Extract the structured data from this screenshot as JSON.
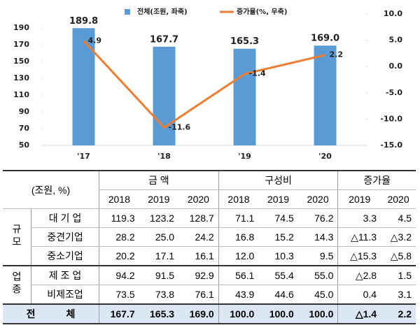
{
  "chart_data": {
    "type": "combo",
    "categories": [
      "'17",
      "'18",
      "'19",
      "'20"
    ],
    "series": [
      {
        "name": "전체(조원, 좌축)",
        "type": "bar",
        "color": "#5b9bd5",
        "values": [
          189.8,
          167.7,
          165.3,
          169.0
        ],
        "value_labels": [
          "189.8",
          "167.7",
          "165.3",
          "169.0"
        ]
      },
      {
        "name": "증가율(%, 우축)",
        "type": "line",
        "axis": "y2",
        "color": "#ed7d31",
        "values": [
          4.9,
          -11.6,
          -1.4,
          2.2
        ]
      }
    ],
    "ylim": [
      50,
      206.7
    ],
    "yticks": [
      50,
      70,
      90,
      110,
      130,
      150,
      170,
      190
    ],
    "y2lim": [
      -15,
      10
    ],
    "y2ticks": [
      {
        "value": 10,
        "label": "10.0"
      },
      {
        "value": 5,
        "label": "5.0"
      },
      {
        "value": 0,
        "label": "0.0"
      },
      {
        "value": -5,
        "label": "-5.0"
      },
      {
        "value": -10,
        "label": "-10.0"
      },
      {
        "value": -15,
        "label": "-15.0"
      }
    ],
    "legend": "top"
  },
  "table": {
    "unit": "(조원, %)",
    "groups": [
      "금 액",
      "구성비",
      "증가율"
    ],
    "years": [
      [
        2018,
        2019,
        2020
      ],
      [
        2018,
        2019,
        2020
      ],
      [
        2019,
        2020
      ]
    ],
    "sections": [
      {
        "label": "규모",
        "rows": [
          {
            "label": "대 기 업",
            "values": [
              "119.3",
              "123.2",
              "128.7",
              "71.1",
              "74.5",
              "76.2",
              "3.3",
              "4.5"
            ]
          },
          {
            "label": "중견기업",
            "values": [
              "28.2",
              "25.0",
              "24.2",
              "16.8",
              "15.2",
              "14.3",
              "△11.3",
              "△3.2"
            ]
          },
          {
            "label": "중소기업",
            "values": [
              "20.2",
              "17.1",
              "16.1",
              "12.0",
              "10.3",
              "9.5",
              "△15.3",
              "△5.8"
            ]
          }
        ]
      },
      {
        "label": "업종",
        "rows": [
          {
            "label": "제 조 업",
            "values": [
              "94.2",
              "91.5",
              "92.9",
              "56.1",
              "55.4",
              "55.0",
              "△2.8",
              "1.5"
            ]
          },
          {
            "label": "비제조업",
            "values": [
              "73.5",
              "73.8",
              "76.1",
              "43.9",
              "44.6",
              "45.0",
              "0.4",
              "3.1"
            ]
          }
        ]
      }
    ],
    "total": {
      "label": "전 체",
      "values": [
        "167.7",
        "165.3",
        "169.0",
        "100.0",
        "100.0",
        "100.0",
        "△1.4",
        "2.2"
      ]
    }
  }
}
